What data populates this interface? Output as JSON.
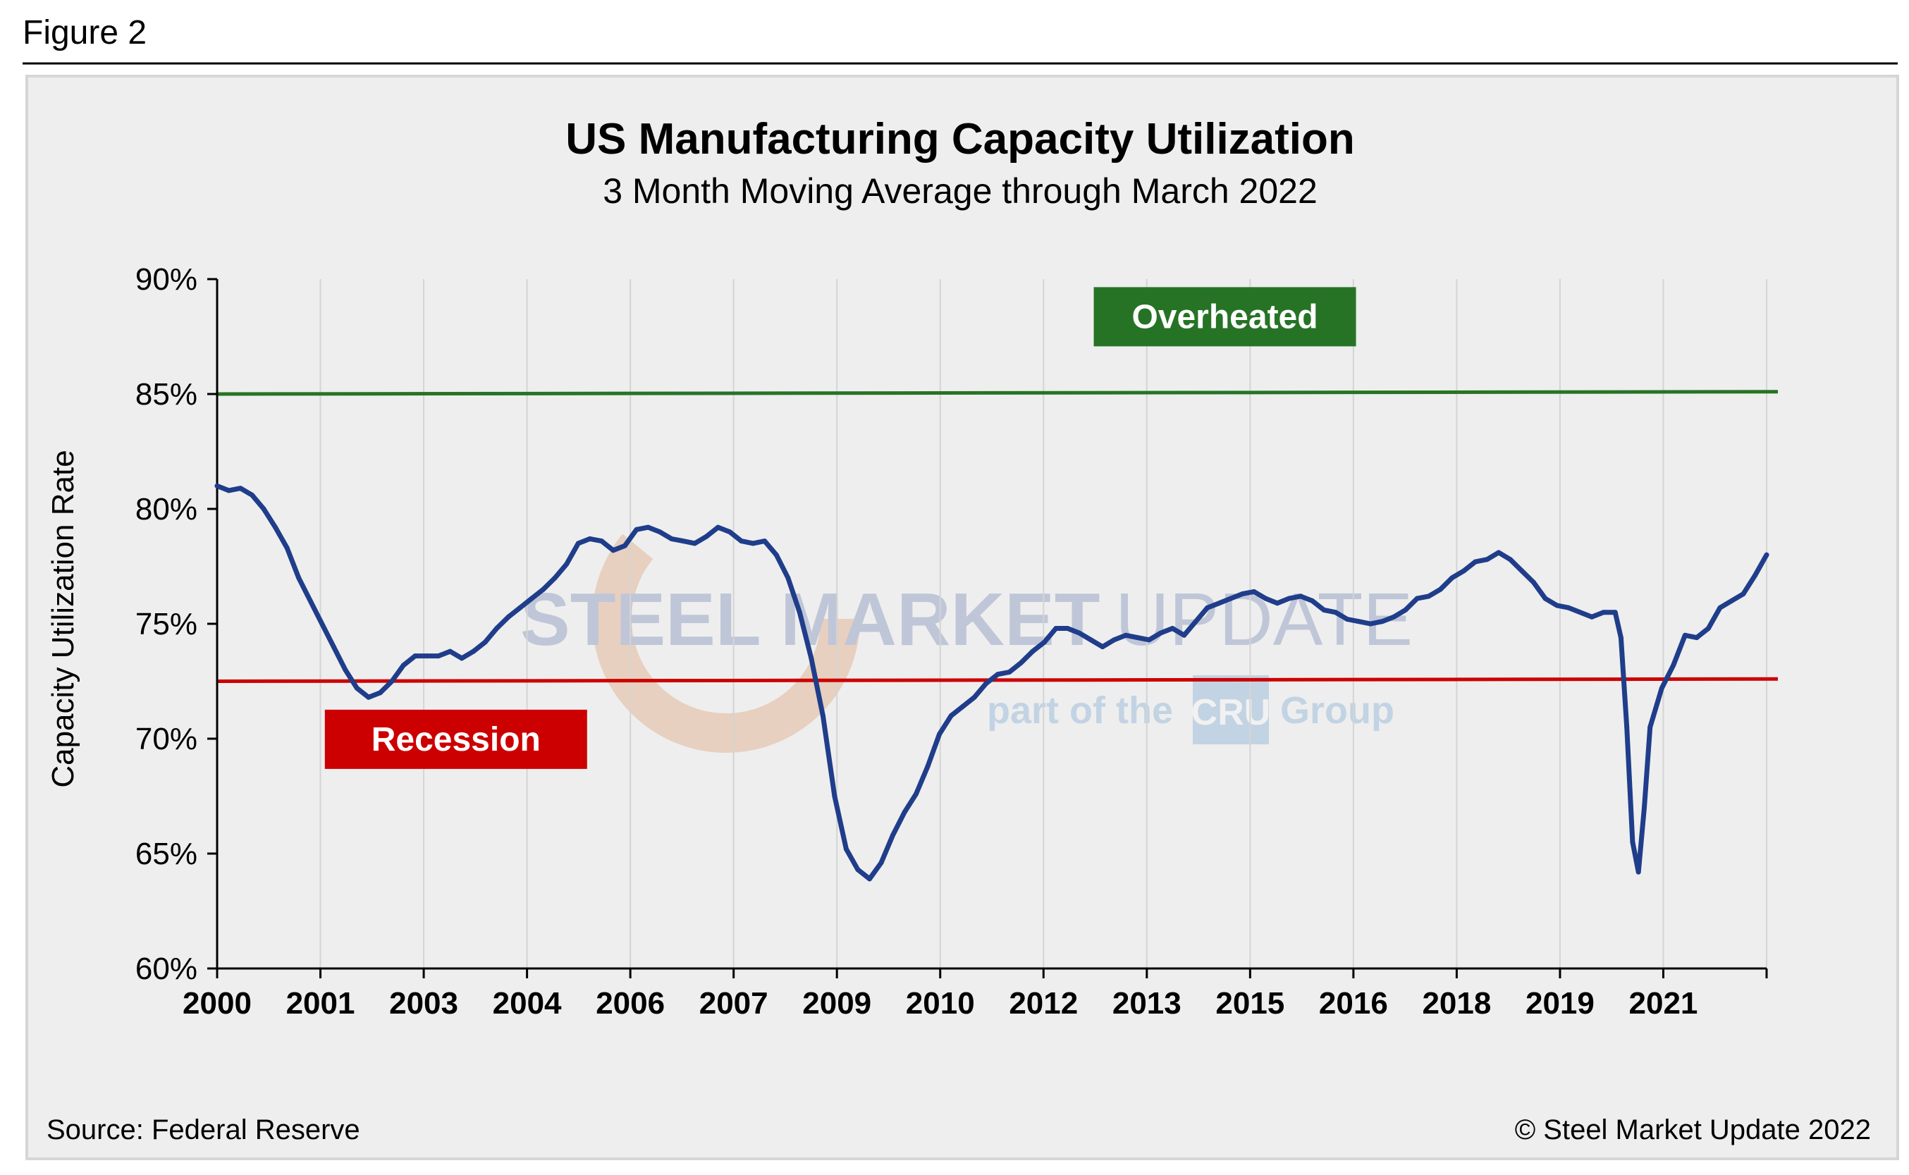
{
  "figure_label": "Figure 2",
  "source": "Source: Federal Reserve",
  "copyright": "© Steel Market Update 2022",
  "watermark": {
    "text_left": "STEEL MARKET",
    "text_right": "UPDATE",
    "tagline_left": "part of the",
    "tagline_badge": "CRU",
    "tagline_right": "Group"
  },
  "colors": {
    "series": "#1f3d8a",
    "overheated": "#267326",
    "recession": "#cc0000",
    "panel_bg": "#eeeeee",
    "grid": "#d4d4d4"
  },
  "chart_data": {
    "type": "line",
    "title": "US Manufacturing Capacity Utilization",
    "subtitle": "3 Month Moving Average through March 2022",
    "ylabel": "Capacity Utilization Rate",
    "xlabel": "",
    "ylim": [
      60,
      90
    ],
    "xlim": [
      "2000-01",
      "2022-03"
    ],
    "yticks": [
      "60%",
      "65%",
      "70%",
      "75%",
      "80%",
      "85%",
      "90%"
    ],
    "ytick_values": [
      60,
      65,
      70,
      75,
      80,
      85,
      90
    ],
    "xticks": [
      "2000",
      "2001",
      "2003",
      "2004",
      "2006",
      "2007",
      "2009",
      "2010",
      "2012",
      "2013",
      "2015",
      "2016",
      "2018",
      "2019",
      "2021"
    ],
    "grid": "vertical",
    "reference_lines": [
      {
        "name": "Overheated",
        "y_start": 85.0,
        "y_end": 85.1,
        "label_position": "above",
        "label_x": "2014-06"
      },
      {
        "name": "Recession",
        "y_start": 72.5,
        "y_end": 72.6,
        "label_position": "below",
        "label_x": "2003-06"
      }
    ],
    "series": [
      {
        "points": [
          [
            "2000-01",
            81.0
          ],
          [
            "2000-03",
            80.8
          ],
          [
            "2000-05",
            80.9
          ],
          [
            "2000-07",
            80.6
          ],
          [
            "2000-09",
            80.0
          ],
          [
            "2000-11",
            79.2
          ],
          [
            "2001-01",
            78.3
          ],
          [
            "2001-03",
            77.0
          ],
          [
            "2001-05",
            76.0
          ],
          [
            "2001-07",
            75.0
          ],
          [
            "2001-09",
            74.0
          ],
          [
            "2001-11",
            73.0
          ],
          [
            "2002-01",
            72.2
          ],
          [
            "2002-03",
            71.8
          ],
          [
            "2002-05",
            72.0
          ],
          [
            "2002-07",
            72.5
          ],
          [
            "2002-09",
            73.2
          ],
          [
            "2002-11",
            73.6
          ],
          [
            "2003-01",
            73.6
          ],
          [
            "2003-03",
            73.6
          ],
          [
            "2003-05",
            73.8
          ],
          [
            "2003-07",
            73.5
          ],
          [
            "2003-09",
            73.8
          ],
          [
            "2003-11",
            74.2
          ],
          [
            "2004-01",
            74.8
          ],
          [
            "2004-03",
            75.3
          ],
          [
            "2004-05",
            75.7
          ],
          [
            "2004-07",
            76.1
          ],
          [
            "2004-09",
            76.5
          ],
          [
            "2004-11",
            77.0
          ],
          [
            "2005-01",
            77.6
          ],
          [
            "2005-03",
            78.5
          ],
          [
            "2005-05",
            78.7
          ],
          [
            "2005-07",
            78.6
          ],
          [
            "2005-09",
            78.2
          ],
          [
            "2005-11",
            78.4
          ],
          [
            "2006-01",
            79.1
          ],
          [
            "2006-03",
            79.2
          ],
          [
            "2006-05",
            79.0
          ],
          [
            "2006-07",
            78.7
          ],
          [
            "2006-09",
            78.6
          ],
          [
            "2006-11",
            78.5
          ],
          [
            "2007-01",
            78.8
          ],
          [
            "2007-03",
            79.2
          ],
          [
            "2007-05",
            79.0
          ],
          [
            "2007-07",
            78.6
          ],
          [
            "2007-09",
            78.5
          ],
          [
            "2007-11",
            78.6
          ],
          [
            "2008-01",
            78.0
          ],
          [
            "2008-03",
            77.0
          ],
          [
            "2008-05",
            75.5
          ],
          [
            "2008-07",
            73.5
          ],
          [
            "2008-09",
            71.0
          ],
          [
            "2008-11",
            67.5
          ],
          [
            "2009-01",
            65.2
          ],
          [
            "2009-03",
            64.3
          ],
          [
            "2009-05",
            63.9
          ],
          [
            "2009-07",
            64.6
          ],
          [
            "2009-09",
            65.8
          ],
          [
            "2009-11",
            66.8
          ],
          [
            "2010-01",
            67.6
          ],
          [
            "2010-03",
            68.8
          ],
          [
            "2010-05",
            70.2
          ],
          [
            "2010-07",
            71.0
          ],
          [
            "2010-09",
            71.4
          ],
          [
            "2010-11",
            71.8
          ],
          [
            "2011-01",
            72.4
          ],
          [
            "2011-03",
            72.8
          ],
          [
            "2011-05",
            72.9
          ],
          [
            "2011-07",
            73.3
          ],
          [
            "2011-09",
            73.8
          ],
          [
            "2011-11",
            74.2
          ],
          [
            "2012-01",
            74.8
          ],
          [
            "2012-03",
            74.8
          ],
          [
            "2012-05",
            74.6
          ],
          [
            "2012-07",
            74.3
          ],
          [
            "2012-09",
            74.0
          ],
          [
            "2012-11",
            74.3
          ],
          [
            "2013-01",
            74.5
          ],
          [
            "2013-03",
            74.4
          ],
          [
            "2013-05",
            74.3
          ],
          [
            "2013-07",
            74.6
          ],
          [
            "2013-09",
            74.8
          ],
          [
            "2013-11",
            74.5
          ],
          [
            "2014-01",
            75.1
          ],
          [
            "2014-03",
            75.7
          ],
          [
            "2014-05",
            75.9
          ],
          [
            "2014-07",
            76.1
          ],
          [
            "2014-09",
            76.3
          ],
          [
            "2014-11",
            76.4
          ],
          [
            "2015-01",
            76.1
          ],
          [
            "2015-03",
            75.9
          ],
          [
            "2015-05",
            76.1
          ],
          [
            "2015-07",
            76.2
          ],
          [
            "2015-09",
            76.0
          ],
          [
            "2015-11",
            75.6
          ],
          [
            "2016-01",
            75.5
          ],
          [
            "2016-03",
            75.2
          ],
          [
            "2016-05",
            75.1
          ],
          [
            "2016-07",
            75.0
          ],
          [
            "2016-09",
            75.1
          ],
          [
            "2016-11",
            75.3
          ],
          [
            "2017-01",
            75.6
          ],
          [
            "2017-03",
            76.1
          ],
          [
            "2017-05",
            76.2
          ],
          [
            "2017-07",
            76.5
          ],
          [
            "2017-09",
            77.0
          ],
          [
            "2017-11",
            77.3
          ],
          [
            "2018-01",
            77.7
          ],
          [
            "2018-03",
            77.8
          ],
          [
            "2018-05",
            78.1
          ],
          [
            "2018-07",
            77.8
          ],
          [
            "2018-09",
            77.3
          ],
          [
            "2018-11",
            76.8
          ],
          [
            "2019-01",
            76.1
          ],
          [
            "2019-03",
            75.8
          ],
          [
            "2019-05",
            75.7
          ],
          [
            "2019-07",
            75.5
          ],
          [
            "2019-09",
            75.3
          ],
          [
            "2019-11",
            75.5
          ],
          [
            "2020-01",
            75.5
          ],
          [
            "2020-02",
            74.4
          ],
          [
            "2020-03",
            70.5
          ],
          [
            "2020-04",
            65.5
          ],
          [
            "2020-05",
            64.2
          ],
          [
            "2020-06",
            67.0
          ],
          [
            "2020-07",
            70.5
          ],
          [
            "2020-09",
            72.2
          ],
          [
            "2020-11",
            73.2
          ],
          [
            "2021-01",
            74.5
          ],
          [
            "2021-03",
            74.4
          ],
          [
            "2021-05",
            74.8
          ],
          [
            "2021-07",
            75.7
          ],
          [
            "2021-09",
            76.0
          ],
          [
            "2021-11",
            76.3
          ],
          [
            "2022-01",
            77.1
          ],
          [
            "2022-03",
            78.0
          ]
        ]
      }
    ]
  }
}
